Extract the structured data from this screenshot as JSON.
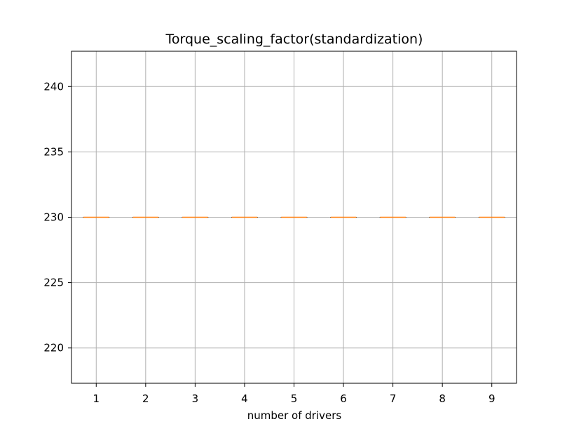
{
  "chart_data": {
    "type": "box",
    "title": "Torque_scaling_factor(standardization)",
    "xlabel": "number of drivers",
    "ylabel": "",
    "categories": [
      "1",
      "2",
      "3",
      "4",
      "5",
      "6",
      "7",
      "8",
      "9"
    ],
    "median": [
      230,
      230,
      230,
      230,
      230,
      230,
      230,
      230,
      230
    ],
    "q1": [
      230,
      230,
      230,
      230,
      230,
      230,
      230,
      230,
      230
    ],
    "q3": [
      230,
      230,
      230,
      230,
      230,
      230,
      230,
      230,
      230
    ],
    "whisker_low": [
      230,
      230,
      230,
      230,
      230,
      230,
      230,
      230,
      230
    ],
    "whisker_high": [
      230,
      230,
      230,
      230,
      230,
      230,
      230,
      230,
      230
    ],
    "ylim": [
      217.3,
      242.7
    ],
    "yticks": [
      220,
      225,
      230,
      235,
      240
    ],
    "grid": true,
    "colors": {
      "median": "#ff7f0e",
      "box": "#000000",
      "grid": "#b0b0b0"
    }
  }
}
